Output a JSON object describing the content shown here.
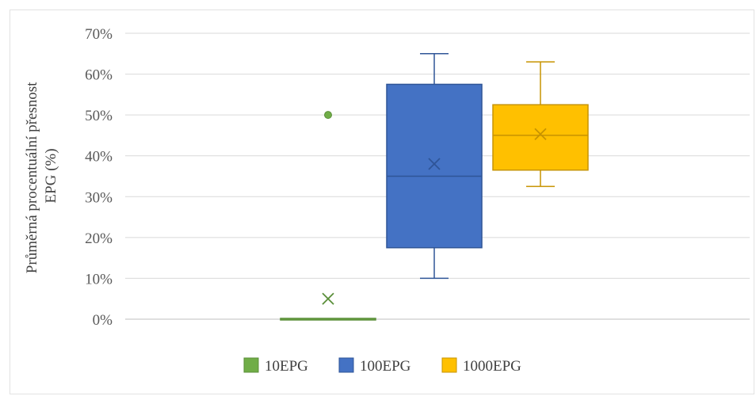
{
  "chart_data": {
    "type": "box",
    "ylabel_lines": [
      "Průměrná procentuální přesnost",
      "EPG (%)"
    ],
    "ylim": [
      0,
      70
    ],
    "yticks": [
      0,
      10,
      20,
      30,
      40,
      50,
      60,
      70
    ],
    "ytick_labels": [
      "0%",
      "10%",
      "20%",
      "30%",
      "40%",
      "50%",
      "60%",
      "70%"
    ],
    "grid": true,
    "legend_position": "bottom",
    "series": [
      {
        "name": "10EPG",
        "color": "#70ad47",
        "min": 0,
        "q1": 0,
        "median": 0,
        "q3": 0,
        "max": 0,
        "mean": 5,
        "outliers": [
          50
        ]
      },
      {
        "name": "100EPG",
        "color": "#4472c4",
        "min": 10,
        "q1": 17.5,
        "median": 35,
        "q3": 57.5,
        "max": 65,
        "mean": 38,
        "outliers": []
      },
      {
        "name": "1000EPG",
        "color": "#ffc000",
        "min": 32.5,
        "q1": 36.5,
        "median": 45,
        "q3": 52.5,
        "max": 63,
        "mean": 45.3,
        "outliers": []
      }
    ]
  }
}
